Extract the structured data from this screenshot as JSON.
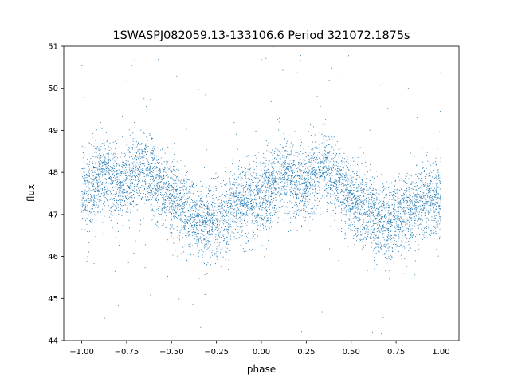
{
  "chart_data": {
    "type": "scatter",
    "title": "1SWASPJ082059.13-133106.6 Period 321072.1875s",
    "xlabel": "phase",
    "ylabel": "flux",
    "xlim": [
      -1.1,
      1.1
    ],
    "ylim": [
      44,
      51
    ],
    "xticks": [
      "−1.00",
      "−0.75",
      "−0.50",
      "−0.25",
      "0.00",
      "0.25",
      "0.50",
      "0.75",
      "1.00"
    ],
    "xtick_values": [
      -1.0,
      -0.75,
      -0.5,
      -0.25,
      0.0,
      0.25,
      0.5,
      0.75,
      1.0
    ],
    "yticks": [
      "44",
      "45",
      "46",
      "47",
      "48",
      "49",
      "50",
      "51"
    ],
    "ytick_values": [
      44,
      45,
      46,
      47,
      48,
      49,
      50,
      51
    ],
    "grid": false,
    "legend": false,
    "point_color": "#1f77b4",
    "phased_profile": {
      "phase": [
        0.0,
        0.05,
        0.1,
        0.15,
        0.2,
        0.25,
        0.3,
        0.35,
        0.4,
        0.45,
        0.5,
        0.55,
        0.6,
        0.65,
        0.7,
        0.75,
        0.8,
        0.85,
        0.9,
        0.95,
        1.0
      ],
      "flux": [
        47.4,
        47.6,
        47.9,
        48.0,
        47.7,
        47.7,
        48.0,
        48.2,
        47.9,
        47.6,
        47.4,
        47.2,
        47.0,
        46.9,
        46.8,
        46.9,
        47.0,
        47.2,
        47.3,
        47.4,
        47.4
      ]
    },
    "scatter_spread": 0.45,
    "point_count": 7000
  }
}
